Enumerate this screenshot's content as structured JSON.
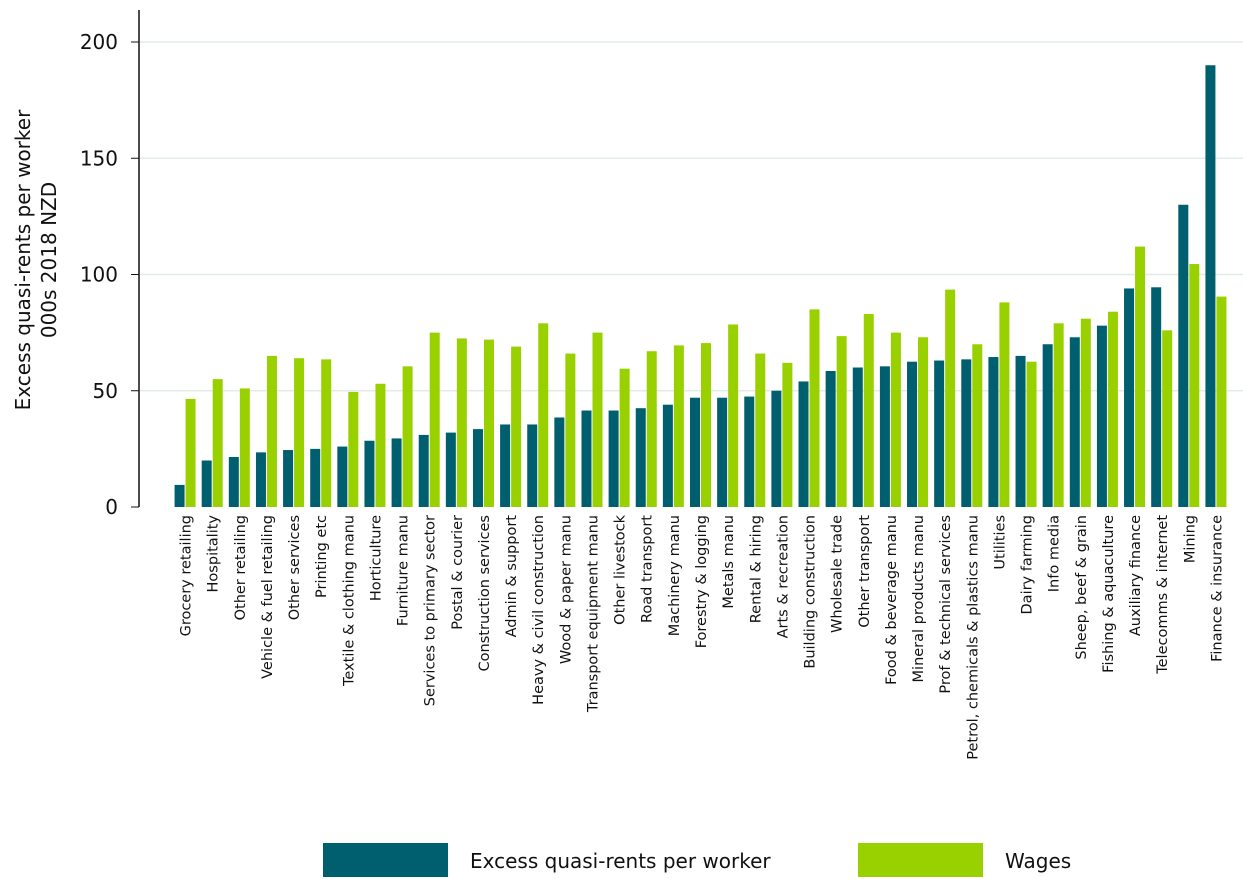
{
  "chart_data": {
    "type": "bar",
    "ylabel": [
      "Excess quasi-rents per worker",
      "000s 2018 NZD"
    ],
    "categories": [
      "Grocery retailing",
      "Hospitality",
      "Other retailing",
      "Vehicle & fuel retailing",
      "Other services",
      "Printing etc",
      "Textile & clothing manu",
      "Horticulture",
      "Furniture manu",
      "Services to primary sector",
      "Postal & courier",
      "Construction services",
      "Admin & support",
      "Heavy & civil construction",
      "Wood & paper manu",
      "Transport equipment manu",
      "Other livestock",
      "Road transport",
      "Machinery manu",
      "Forestry & logging",
      "Metals manu",
      "Rental & hiring",
      "Arts & recreation",
      "Building construction",
      "Wholesale trade",
      "Other transport",
      "Food & beverage manu",
      "Mineral products manu",
      "Prof & technical services",
      "Petrol, chemicals & plastics manu",
      "Utilities",
      "Dairy farming",
      "Info media",
      "Sheep, beef & grain",
      "Fishing & aquaculture",
      "Auxiliary finance",
      "Telecomms & internet",
      "Mining",
      "Finance & insurance"
    ],
    "series": [
      {
        "name": "Excess quasi-rents per worker",
        "color": "#005f6e",
        "values": [
          9.5,
          20,
          21.5,
          23.5,
          24.5,
          25,
          26,
          28.5,
          29.5,
          31,
          32,
          33.5,
          35.5,
          35.5,
          38.5,
          41.5,
          41.5,
          42.5,
          44,
          47,
          47,
          47.5,
          50,
          54,
          58.5,
          60,
          60.5,
          62.5,
          63,
          63.5,
          64.5,
          65,
          70,
          73,
          78,
          94,
          94.5,
          130,
          190
        ]
      },
      {
        "name": "Wages",
        "color": "#99d100",
        "values": [
          46.5,
          55,
          51,
          65,
          64,
          63.5,
          49.5,
          53,
          60.5,
          75,
          72.5,
          72,
          69,
          79,
          66,
          75,
          59.5,
          67,
          69.5,
          70.5,
          78.5,
          66,
          62,
          85,
          73.5,
          83,
          75,
          73,
          93.5,
          70,
          88,
          62.5,
          79,
          81,
          84,
          112,
          76,
          104.5,
          90.5
        ]
      }
    ],
    "ylim": [
      0,
      200
    ],
    "yticks": [
      0,
      50,
      100,
      150,
      200
    ],
    "grid": true
  }
}
